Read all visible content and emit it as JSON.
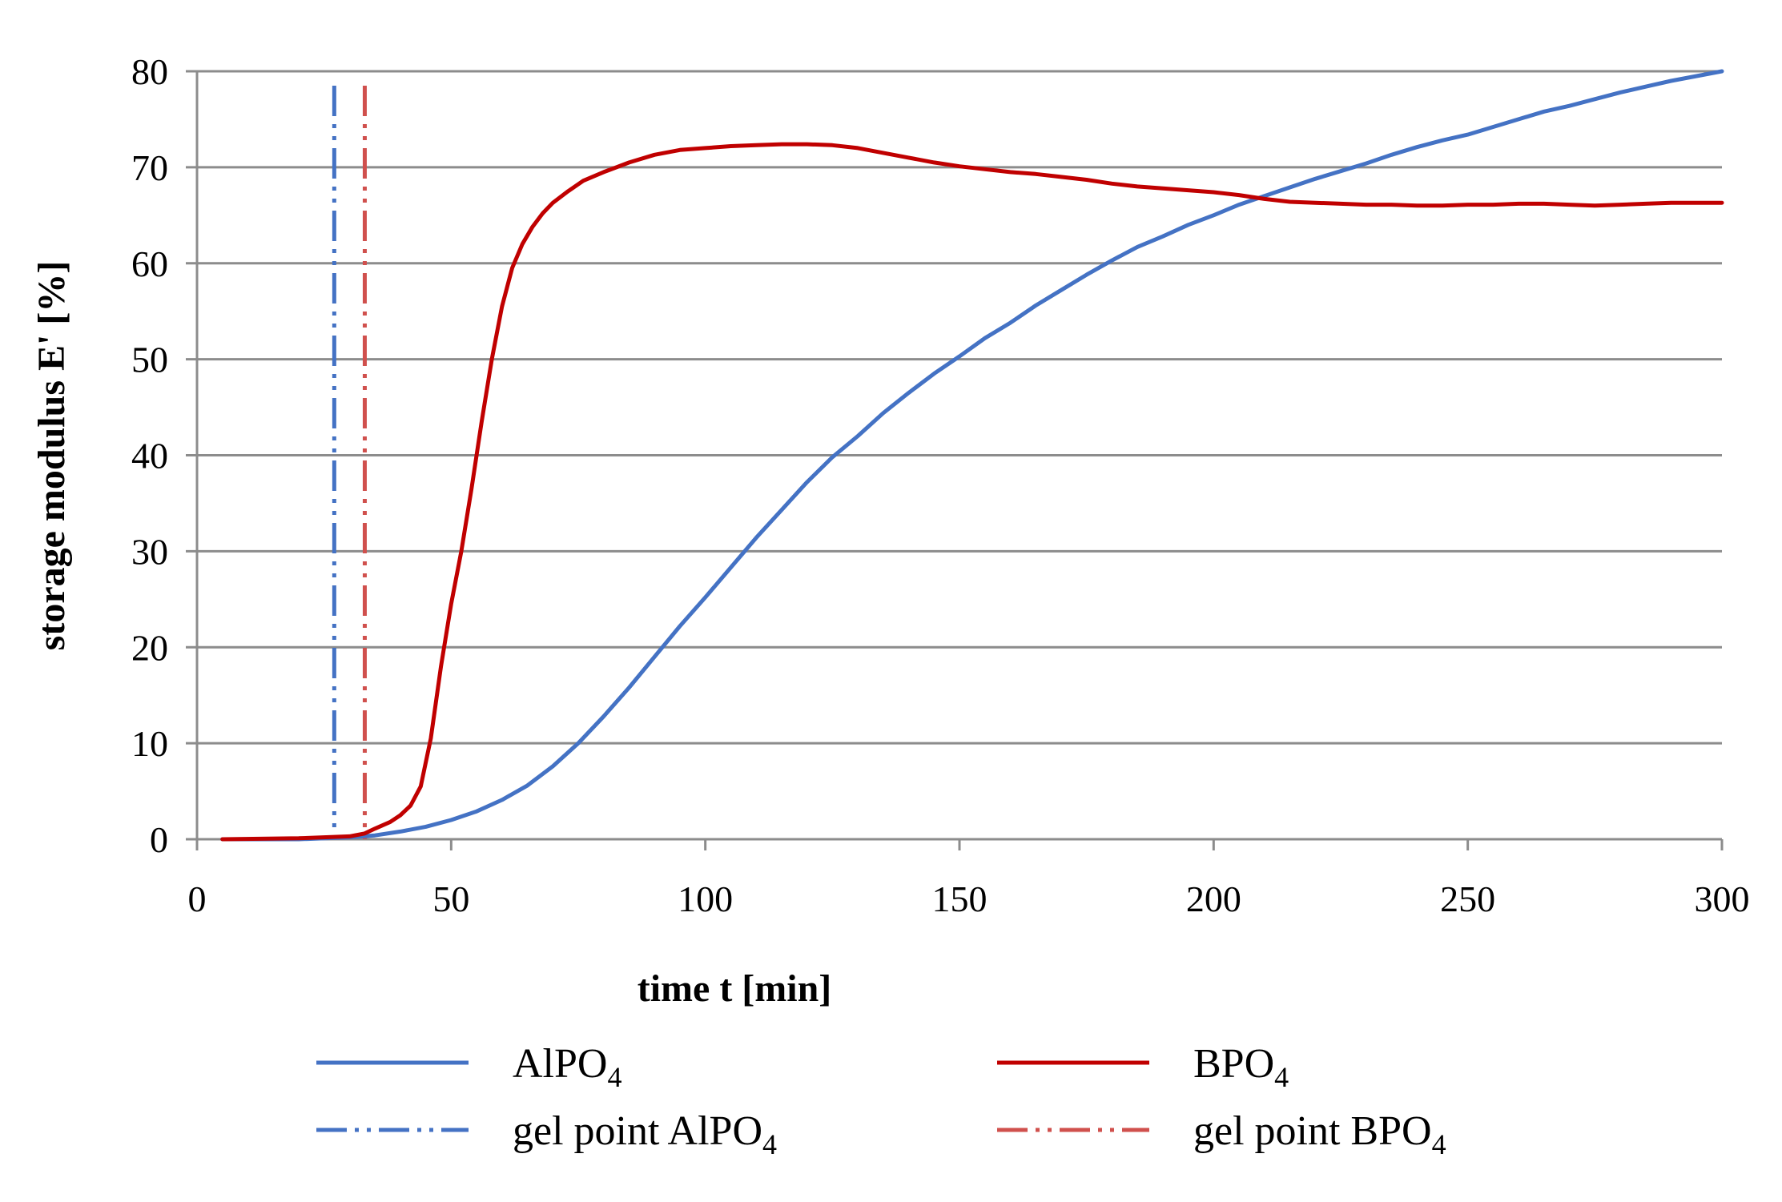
{
  "chart_data": {
    "type": "line",
    "title": "",
    "xlabel": "time t [min]",
    "ylabel": "storage modulus E' [%]",
    "xlim": [
      0,
      300
    ],
    "ylim": [
      0,
      80
    ],
    "xticks": [
      0,
      50,
      100,
      150,
      200,
      250,
      300
    ],
    "yticks": [
      0,
      10,
      20,
      30,
      40,
      50,
      60,
      70,
      80
    ],
    "grid": "horizontal",
    "legend_position": "bottom",
    "series": [
      {
        "name": "AlPO",
        "name_sub": "4",
        "color": "#4472C4",
        "style": "solid",
        "x": [
          5,
          20,
          30,
          35,
          40,
          45,
          50,
          55,
          60,
          65,
          70,
          75,
          80,
          85,
          90,
          95,
          100,
          105,
          110,
          115,
          120,
          125,
          130,
          135,
          140,
          145,
          150,
          155,
          160,
          165,
          170,
          175,
          180,
          185,
          190,
          195,
          200,
          205,
          210,
          215,
          220,
          225,
          230,
          235,
          240,
          245,
          250,
          255,
          260,
          265,
          270,
          275,
          280,
          285,
          290,
          295,
          300
        ],
        "y": [
          0,
          0,
          0.2,
          0.4,
          0.8,
          1.3,
          2.0,
          2.9,
          4.1,
          5.6,
          7.6,
          10.0,
          12.8,
          15.8,
          19.0,
          22.2,
          25.2,
          28.3,
          31.4,
          34.3,
          37.2,
          39.8,
          42.0,
          44.4,
          46.5,
          48.5,
          50.3,
          52.2,
          53.8,
          55.6,
          57.2,
          58.8,
          60.3,
          61.7,
          62.8,
          64.0,
          65.0,
          66.1,
          67.0,
          67.9,
          68.8,
          69.6,
          70.4,
          71.3,
          72.1,
          72.8,
          73.4,
          74.2,
          75.0,
          75.8,
          76.4,
          77.1,
          77.8,
          78.4,
          79.0,
          79.5,
          80.0
        ]
      },
      {
        "name": "BPO",
        "name_sub": "4",
        "color": "#C00000",
        "style": "solid",
        "x": [
          5,
          20,
          30,
          33,
          35,
          38,
          40,
          42,
          44,
          46,
          48,
          50,
          52,
          54,
          56,
          58,
          60,
          62,
          64,
          66,
          68,
          70,
          73,
          76,
          80,
          85,
          90,
          95,
          100,
          105,
          110,
          115,
          120,
          125,
          130,
          135,
          140,
          145,
          150,
          155,
          160,
          165,
          170,
          175,
          180,
          185,
          190,
          195,
          200,
          205,
          210,
          215,
          220,
          225,
          230,
          235,
          240,
          245,
          250,
          255,
          260,
          265,
          270,
          275,
          280,
          285,
          290,
          295,
          300
        ],
        "y": [
          0,
          0.1,
          0.3,
          0.6,
          1.1,
          1.8,
          2.5,
          3.5,
          5.5,
          10.5,
          18.0,
          24.5,
          30.0,
          36.5,
          43.5,
          50.0,
          55.5,
          59.5,
          62.0,
          63.8,
          65.2,
          66.3,
          67.5,
          68.6,
          69.5,
          70.5,
          71.3,
          71.8,
          72.0,
          72.2,
          72.3,
          72.4,
          72.4,
          72.3,
          72.0,
          71.5,
          71.0,
          70.5,
          70.1,
          69.8,
          69.5,
          69.3,
          69.0,
          68.7,
          68.3,
          68.0,
          67.8,
          67.6,
          67.4,
          67.1,
          66.7,
          66.4,
          66.3,
          66.2,
          66.1,
          66.1,
          66.0,
          66.0,
          66.1,
          66.1,
          66.2,
          66.2,
          66.1,
          66.0,
          66.1,
          66.2,
          66.3,
          66.3,
          66.3
        ]
      }
    ],
    "vertical_markers": [
      {
        "name": "gel point AlPO",
        "name_sub": "4",
        "x": 27,
        "color": "#4472C4",
        "style": "dash-dot-dot"
      },
      {
        "name": "gel point BPO",
        "name_sub": "4",
        "x": 33,
        "color": "#D0504D",
        "style": "dash-dot-dot"
      }
    ]
  }
}
